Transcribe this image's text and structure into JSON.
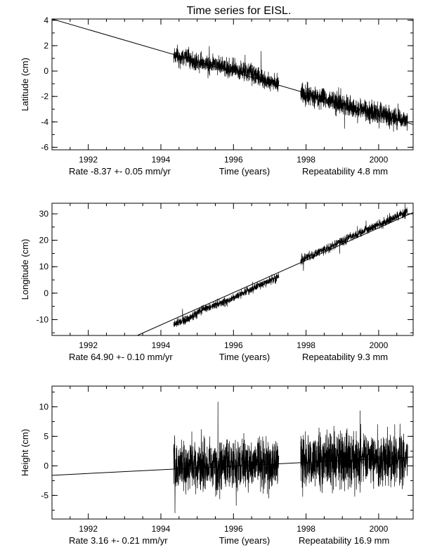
{
  "chart_data": [
    {
      "type": "line",
      "title": "Time series for EISL.",
      "xlabel": "Time (years)",
      "ylabel": "Latitude (cm)",
      "xlim": [
        1991.0,
        2000.95
      ],
      "ylim": [
        -6.2,
        4.1
      ],
      "xticks": [
        1992,
        1994,
        1996,
        1998,
        2000
      ],
      "yticks": [
        -6,
        -4,
        -2,
        0,
        2,
        4
      ],
      "rate_text": "Rate  -8.37 +- 0.05 mm/yr",
      "repeatability_text": "Repeatability 4.8 mm",
      "trend": {
        "x": [
          1991.0,
          2000.95
        ],
        "y": [
          4.1,
          -4.2
        ]
      },
      "series": [
        {
          "x": [
            1994.35,
            1994.5,
            1994.7,
            1994.9,
            1995.1,
            1995.3,
            1995.5,
            1995.7,
            1995.9,
            1996.1,
            1996.3,
            1996.5,
            1996.7,
            1996.9,
            1997.1,
            1997.25
          ],
          "y": [
            1.3,
            1.0,
            1.2,
            0.7,
            0.8,
            0.5,
            0.6,
            0.4,
            0.2,
            0.1,
            -0.1,
            -0.2,
            -0.5,
            -0.7,
            -0.9,
            -1.1
          ],
          "spread": 1.2
        },
        {
          "x": [
            1997.85,
            1998.0,
            1998.2,
            1998.4,
            1998.6,
            1998.8,
            1999.0,
            1999.2,
            1999.4,
            1999.6,
            1999.8,
            2000.0,
            2000.2,
            2000.4,
            2000.6,
            2000.8
          ],
          "y": [
            -1.7,
            -1.9,
            -2.0,
            -2.1,
            -2.3,
            -2.5,
            -2.6,
            -2.8,
            -3.0,
            -3.1,
            -3.2,
            -3.4,
            -3.5,
            -3.6,
            -3.8,
            -3.9
          ],
          "spread": 1.4
        }
      ]
    },
    {
      "type": "line",
      "title": "",
      "xlabel": "Time (years)",
      "ylabel": "Longitude (cm)",
      "xlim": [
        1991.0,
        2000.95
      ],
      "ylim": [
        -16,
        34
      ],
      "xticks": [
        1992,
        1994,
        1996,
        1998,
        2000
      ],
      "yticks": [
        -10,
        0,
        10,
        20,
        30
      ],
      "rate_text": "Rate  64.90 +- 0.10 mm/yr",
      "repeatability_text": "Repeatability 9.3 mm",
      "trend": {
        "x": [
          1993.35,
          2000.95
        ],
        "y": [
          -16.0,
          30.5
        ]
      },
      "series": [
        {
          "x": [
            1994.35,
            1994.5,
            1994.7,
            1994.9,
            1995.1,
            1995.3,
            1995.5,
            1995.7,
            1995.9,
            1996.1,
            1996.3,
            1996.5,
            1996.7,
            1996.9,
            1997.1,
            1997.25
          ],
          "y": [
            -12.0,
            -11.0,
            -10.0,
            -8.5,
            -6.5,
            -5.5,
            -4.5,
            -3.5,
            -2.5,
            -0.8,
            0.5,
            1.5,
            3.0,
            4.0,
            5.5,
            6.5
          ],
          "spread": 2.5
        },
        {
          "x": [
            1997.85,
            1998.0,
            1998.2,
            1998.4,
            1998.6,
            1998.8,
            1999.0,
            1999.2,
            1999.4,
            1999.6,
            1999.8,
            2000.0,
            2000.2,
            2000.4,
            2000.6,
            2000.8
          ],
          "y": [
            12.5,
            13.5,
            14.5,
            16.0,
            17.0,
            18.5,
            19.5,
            21.0,
            22.0,
            23.5,
            25.0,
            26.0,
            27.0,
            28.5,
            29.5,
            31.0
          ],
          "spread": 2.8
        }
      ]
    },
    {
      "type": "line",
      "title": "",
      "xlabel": "Time (years)",
      "ylabel": "Height (cm)",
      "xlim": [
        1991.0,
        2000.95
      ],
      "ylim": [
        -9,
        13.5
      ],
      "xticks": [
        1992,
        1994,
        1996,
        1998,
        2000
      ],
      "yticks": [
        -5,
        0,
        5,
        10
      ],
      "rate_text": "Rate   3.16 +- 0.21 mm/yr",
      "repeatability_text": "Repeatability 16.9 mm",
      "trend": {
        "x": [
          1991.0,
          2000.95
        ],
        "y": [
          -1.6,
          1.5
        ]
      },
      "series": [
        {
          "x": [
            1994.35,
            1994.5,
            1994.7,
            1994.9,
            1995.1,
            1995.3,
            1995.5,
            1995.7,
            1995.9,
            1996.1,
            1996.3,
            1996.5,
            1996.7,
            1996.9,
            1997.1,
            1997.25
          ],
          "y": [
            -0.4,
            -0.3,
            -0.2,
            -0.2,
            -0.1,
            0.0,
            0.0,
            0.1,
            0.1,
            0.2,
            0.2,
            0.3,
            0.3,
            0.4,
            0.4,
            0.5
          ],
          "spread": 7.5
        },
        {
          "x": [
            1997.85,
            1998.0,
            1998.2,
            1998.4,
            1998.6,
            1998.8,
            1999.0,
            1999.2,
            1999.4,
            1999.6,
            1999.8,
            2000.0,
            2000.2,
            2000.4,
            2000.6,
            2000.8
          ],
          "y": [
            0.6,
            0.7,
            0.7,
            0.8,
            0.8,
            0.9,
            0.9,
            1.0,
            1.0,
            1.1,
            1.1,
            1.2,
            1.2,
            1.3,
            1.3,
            1.4
          ],
          "spread": 8.0
        }
      ]
    }
  ]
}
